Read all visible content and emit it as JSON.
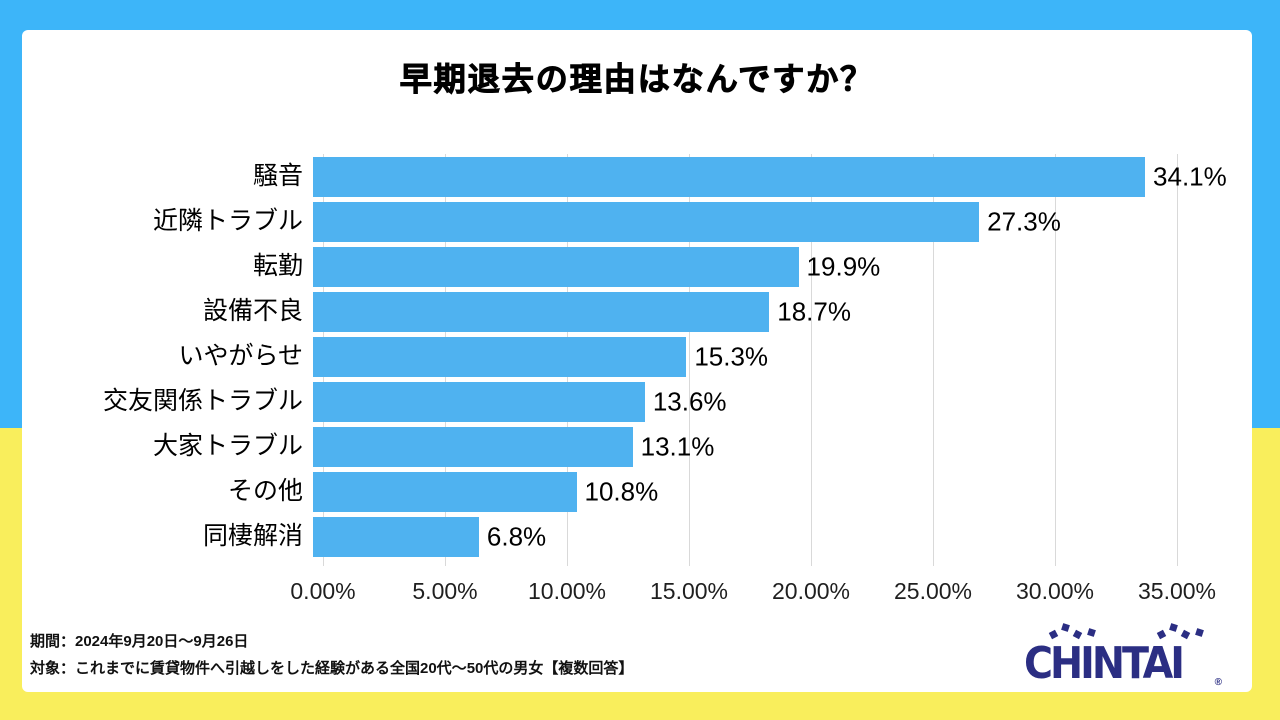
{
  "frame": {
    "top_color": "#3db5f9",
    "bottom_color": "#f9ee5c"
  },
  "chart_data": {
    "type": "bar",
    "orientation": "horizontal",
    "title": "早期退去の理由はなんですか？",
    "categories": [
      "騒音",
      "近隣トラブル",
      "転勤",
      "設備不良",
      "いやがらせ",
      "交友関係トラブル",
      "大家トラブル",
      "その他",
      "同棲解消"
    ],
    "values": [
      34.1,
      27.3,
      19.9,
      18.7,
      15.3,
      13.6,
      13.1,
      10.8,
      6.8
    ],
    "value_labels": [
      "34.1%",
      "27.3%",
      "19.9%",
      "18.7%",
      "15.3%",
      "13.6%",
      "13.1%",
      "10.8%",
      "6.8%"
    ],
    "xlabel": "",
    "ylabel": "",
    "xlim": [
      0,
      35
    ],
    "x_ticks": [
      0,
      5,
      10,
      15,
      20,
      25,
      30,
      35
    ],
    "x_tick_labels": [
      "0.00%",
      "5.00%",
      "10.00%",
      "15.00%",
      "20.00%",
      "25.00%",
      "30.00%",
      "35.00%"
    ],
    "grid": true,
    "legend": "none",
    "bar_color": "#4fb2f0",
    "grid_color": "#d9d9d9"
  },
  "footer": {
    "line1": "期間：2024年9月20日～9月26日",
    "line2": "対象：これまでに賃貸物件へ引越しをした経験がある全国20代～50代の男女【複数回答】"
  },
  "logo": {
    "text": "CHINTAI",
    "registered": "®"
  }
}
